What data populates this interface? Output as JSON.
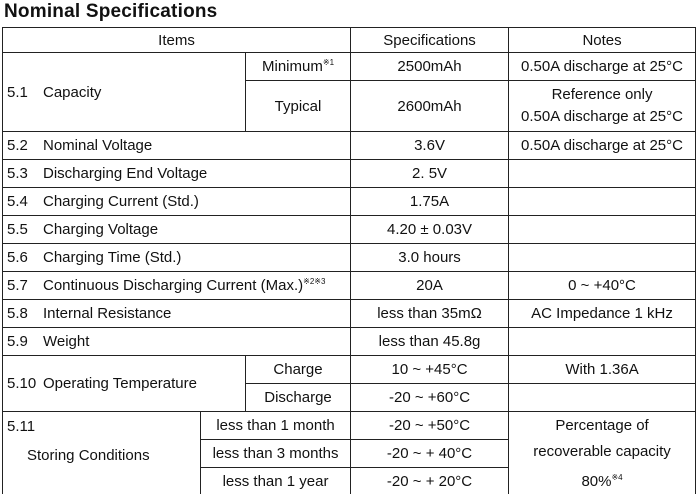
{
  "title": "Nominal Specifications",
  "header": {
    "items": "Items",
    "specifications": "Specifications",
    "notes": "Notes"
  },
  "rows": {
    "capacity": {
      "num": "5.1",
      "label": "Capacity",
      "minimum_label": "Minimum",
      "minimum_mark": "※1",
      "minimum_value": "2500mAh",
      "minimum_note": "0.50A discharge at 25°C",
      "typical_label": "Typical",
      "typical_value": "2600mAh",
      "typical_note_line1": "Reference only",
      "typical_note_line2": "0.50A discharge at 25°C"
    },
    "nominal_voltage": {
      "num": "5.2",
      "label": "Nominal Voltage",
      "value": "3.6V",
      "note": "0.50A discharge at 25°C"
    },
    "discharging_end_voltage": {
      "num": "5.3",
      "label": "Discharging End Voltage",
      "value": "2. 5V",
      "note": ""
    },
    "charging_current": {
      "num": "5.4",
      "label": "Charging Current (Std.)",
      "value": "1.75A",
      "note": ""
    },
    "charging_voltage": {
      "num": "5.5",
      "label": "Charging Voltage",
      "value": "4.20 ± 0.03V",
      "note": ""
    },
    "charging_time": {
      "num": "5.6",
      "label": "Charging Time (Std.)",
      "value": "3.0 hours",
      "note": ""
    },
    "continuous_discharging_current": {
      "num": "5.7",
      "label": "Continuous Discharging Current (Max.)",
      "mark": "※2※3",
      "value": "20A",
      "note": "0 ~ +40°C"
    },
    "internal_resistance": {
      "num": "5.8",
      "label": "Internal Resistance",
      "value": "less than 35mΩ",
      "note": "AC Impedance 1 kHz"
    },
    "weight": {
      "num": "5.9",
      "label": "Weight",
      "value": "less than 45.8g",
      "note": ""
    },
    "operating_temperature": {
      "num": "5.10",
      "label": "Operating Temperature",
      "charge_label": "Charge",
      "charge_value": "10 ~ +45°C",
      "discharge_label": "Discharge",
      "discharge_value": "-20 ~ +60°C",
      "note": "With 1.36A"
    },
    "storing_conditions": {
      "num": "5.11",
      "label": "Storing Conditions",
      "periods": [
        {
          "label": "less than 1 month",
          "value": "-20 ~ +50°C"
        },
        {
          "label": "less than 3 months",
          "value": "-20 ~ + 40°C"
        },
        {
          "label": "less than 1 year",
          "value": "-20 ~ + 20°C"
        }
      ],
      "note_line1": "Percentage of",
      "note_line2": "recoverable capacity",
      "note_line3": "80%",
      "note_mark": "※4"
    }
  }
}
